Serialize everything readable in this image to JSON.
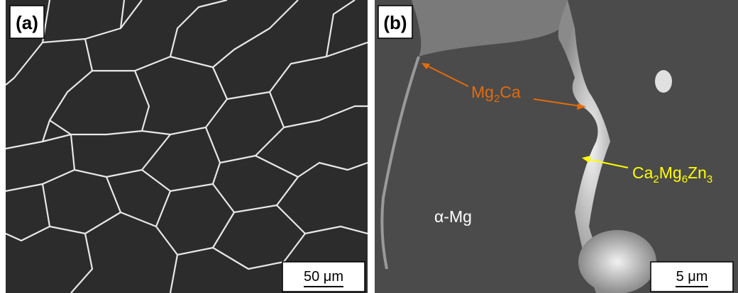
{
  "panels": [
    {
      "label": "(a)",
      "scale_bar": "50 μm"
    },
    {
      "label": "(b)",
      "scale_bar": "5 μm",
      "annotations": [
        {
          "parts": [
            "Mg",
            "2",
            "Ca"
          ]
        },
        {
          "parts": [
            "Ca",
            "2",
            "Mg",
            "6",
            "Zn",
            "3"
          ]
        },
        {
          "parts": [
            "α-Mg"
          ]
        }
      ]
    }
  ]
}
